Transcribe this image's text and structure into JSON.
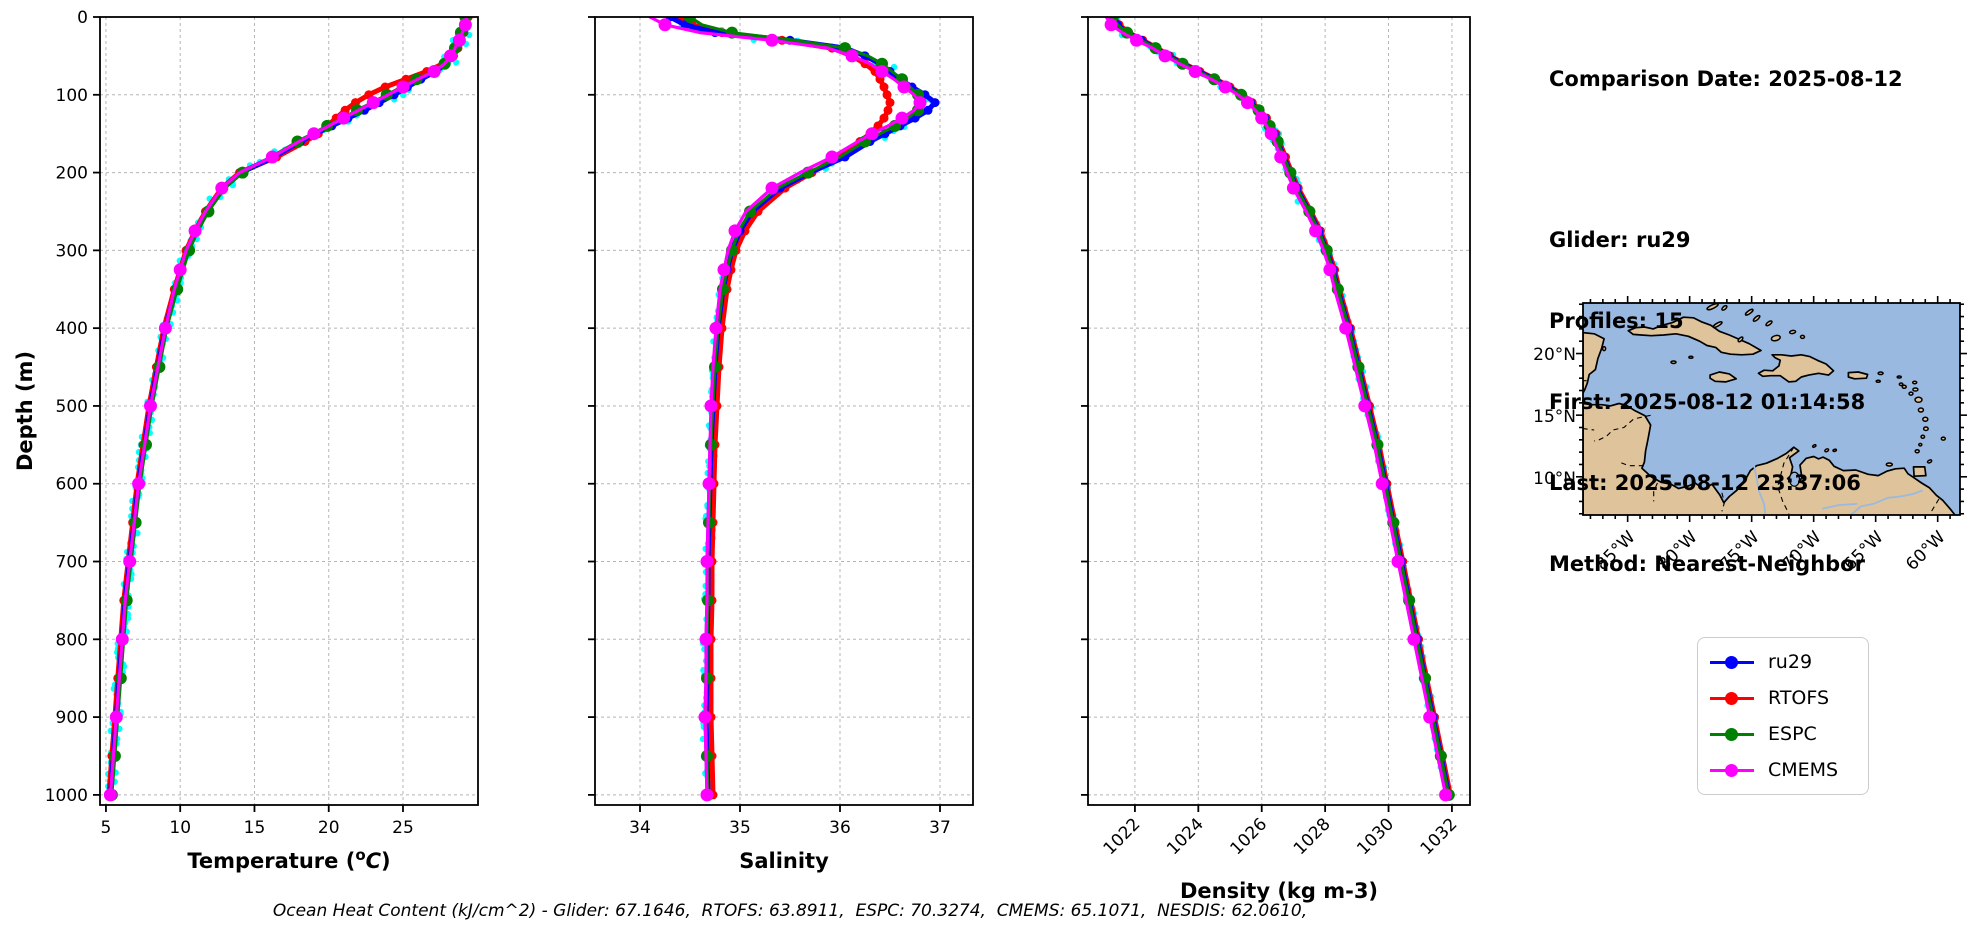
{
  "info_panel": {
    "comparison_date": "Comparison Date: 2025-08-12",
    "glider": "Glider: ru29",
    "profiles": "Profiles: 15",
    "first": "First: 2025-08-12 01:14:58",
    "last": "Last: 2025-08-12 23:37:06",
    "method": "Method: Nearest-Neighbor"
  },
  "legend": {
    "items": [
      {
        "label": "ru29",
        "color": "#0000ff"
      },
      {
        "label": "RTOFS",
        "color": "#ff0000"
      },
      {
        "label": "ESPC",
        "color": "#008000"
      },
      {
        "label": "CMEMS",
        "color": "#ff00ff"
      }
    ]
  },
  "annotation": {
    "text": "Ocean Heat Content (kJ/cm^2) - Glider: 67.1646,  RTOFS: 63.8911,  ESPC: 70.3274,  CMEMS: 65.1071,  NESDIS: 62.0610,"
  },
  "map": {
    "lat_labels": [
      "20°N",
      "15°N",
      "10°N"
    ],
    "lon_labels": [
      "85°W",
      "80°W",
      "75°W",
      "70°W",
      "65°W",
      "60°W"
    ],
    "ocean_color": "#9ab9e0",
    "land_color": "#dfc39a"
  },
  "depth_axis": {
    "label": "Depth (m)",
    "lim": [
      0,
      1013
    ],
    "ticks": [
      0,
      100,
      200,
      300,
      400,
      500,
      600,
      700,
      800,
      900,
      1000
    ],
    "depths": [
      0,
      10,
      20,
      30,
      40,
      50,
      60,
      70,
      80,
      90,
      100,
      110,
      120,
      130,
      140,
      150,
      160,
      180,
      200,
      220,
      250,
      275,
      300,
      325,
      350,
      400,
      450,
      500,
      550,
      600,
      650,
      700,
      750,
      800,
      850,
      900,
      950,
      1000
    ]
  },
  "chart_data": [
    {
      "type": "line",
      "key": "temperature",
      "xlabel": "Temperature (°C)",
      "xlabel_parts": {
        "prefix": "Temperature (",
        "sup": "o",
        "italic": "C",
        "suffix": ")"
      },
      "xlim": [
        4.6,
        30.05
      ],
      "xticks": [
        5,
        10,
        15,
        20,
        25
      ],
      "xtick_rotation": 0,
      "show_depth_labels": true,
      "scatter_name": "glider-scatter",
      "scatter_color": "#00ffff",
      "scatter_spread": 9,
      "scatter_seed": 7,
      "series": [
        {
          "name": "ru29",
          "color": "#0000ff",
          "values": [
            29.3,
            29.2,
            29.0,
            28.8,
            28.6,
            28.3,
            27.9,
            27.2,
            26.2,
            25.3,
            24.4,
            23.4,
            22.4,
            21.3,
            20.2,
            19.1,
            18.1,
            16.3,
            14.1,
            12.9,
            11.8,
            11.1,
            10.5,
            10.1,
            9.7,
            9.0,
            8.5,
            8.0,
            7.6,
            7.2,
            6.9,
            6.6,
            6.3,
            6.1,
            5.9,
            5.7,
            5.5,
            5.3
          ]
        },
        {
          "name": "RTOFS",
          "color": "#ff0000",
          "values": [
            29.4,
            29.3,
            29.1,
            28.9,
            28.7,
            28.4,
            27.7,
            26.6,
            25.2,
            23.8,
            22.7,
            21.8,
            21.1,
            20.5,
            19.9,
            19.3,
            18.4,
            16.5,
            14.0,
            12.8,
            11.7,
            11.0,
            10.4,
            10.0,
            9.6,
            8.9,
            8.4,
            7.9,
            7.5,
            7.1,
            6.8,
            6.5,
            6.2,
            6.0,
            5.8,
            5.6,
            5.4,
            5.2
          ]
        },
        {
          "name": "ESPC",
          "color": "#008000",
          "values": [
            29.2,
            29.1,
            28.9,
            28.7,
            28.5,
            28.2,
            27.8,
            27.0,
            25.9,
            24.9,
            23.9,
            22.9,
            21.9,
            20.9,
            19.9,
            18.9,
            17.9,
            16.1,
            14.2,
            13.0,
            11.9,
            11.2,
            10.6,
            10.2,
            9.8,
            9.1,
            8.6,
            8.1,
            7.7,
            7.3,
            7.0,
            6.7,
            6.4,
            6.2,
            6.0,
            5.8,
            5.6,
            5.4
          ]
        },
        {
          "name": "CMEMS",
          "color": "#ff00ff",
          "values": [
            29.3,
            29.2,
            29.0,
            28.8,
            28.5,
            28.2,
            27.8,
            27.1,
            26.0,
            25.0,
            24.0,
            23.0,
            22.0,
            21.0,
            20.0,
            19.0,
            18.0,
            16.2,
            14.0,
            12.8,
            11.7,
            11.0,
            10.4,
            10.0,
            9.6,
            9.0,
            8.5,
            8.0,
            7.6,
            7.2,
            6.9,
            6.6,
            6.3,
            6.1,
            5.9,
            5.7,
            5.5,
            5.3
          ]
        }
      ]
    },
    {
      "type": "line",
      "key": "salinity",
      "xlabel": "Salinity",
      "xlim": [
        33.55,
        37.33
      ],
      "xticks": [
        34,
        35,
        36,
        37
      ],
      "xtick_rotation": 0,
      "show_depth_labels": false,
      "scatter_name": "glider-scatter",
      "scatter_color": "#00ffff",
      "scatter_spread": 8,
      "scatter_seed": 13,
      "series": [
        {
          "name": "ru29",
          "color": "#0000ff",
          "values": [
            34.3,
            34.45,
            34.75,
            35.5,
            36.05,
            36.25,
            36.4,
            36.5,
            36.6,
            36.72,
            36.85,
            36.95,
            36.88,
            36.75,
            36.6,
            36.45,
            36.3,
            36.05,
            35.7,
            35.4,
            35.12,
            35.0,
            34.92,
            34.87,
            34.83,
            34.78,
            34.75,
            34.73,
            34.71,
            34.7,
            34.69,
            34.68,
            34.68,
            34.67,
            34.67,
            34.66,
            34.67,
            34.68
          ]
        },
        {
          "name": "RTOFS",
          "color": "#ff0000",
          "values": [
            34.4,
            34.52,
            34.82,
            35.42,
            35.92,
            36.12,
            36.25,
            36.35,
            36.4,
            36.44,
            36.47,
            36.5,
            36.48,
            36.44,
            36.38,
            36.3,
            36.2,
            35.98,
            35.72,
            35.45,
            35.18,
            35.05,
            34.96,
            34.91,
            34.87,
            34.82,
            34.79,
            34.77,
            34.75,
            34.74,
            34.73,
            34.72,
            34.72,
            34.71,
            34.71,
            34.71,
            34.72,
            34.73
          ]
        },
        {
          "name": "ESPC",
          "color": "#008000",
          "values": [
            34.5,
            34.62,
            34.92,
            35.55,
            36.05,
            36.28,
            36.42,
            36.52,
            36.62,
            36.7,
            36.78,
            36.82,
            36.78,
            36.68,
            36.55,
            36.4,
            36.25,
            36.0,
            35.68,
            35.38,
            35.1,
            34.99,
            34.92,
            34.87,
            34.83,
            34.78,
            34.75,
            34.73,
            34.71,
            34.7,
            34.69,
            34.68,
            34.68,
            34.67,
            34.67,
            34.66,
            34.67,
            34.68
          ]
        },
        {
          "name": "CMEMS",
          "color": "#ff00ff",
          "values": [
            34.1,
            34.25,
            34.6,
            35.32,
            35.88,
            36.12,
            36.3,
            36.42,
            36.54,
            36.64,
            36.74,
            36.8,
            36.74,
            36.62,
            36.48,
            36.32,
            36.18,
            35.92,
            35.6,
            35.32,
            35.06,
            34.95,
            34.88,
            34.84,
            34.8,
            34.76,
            34.73,
            34.71,
            34.7,
            34.69,
            34.68,
            34.67,
            34.67,
            34.66,
            34.66,
            34.65,
            34.66,
            34.67
          ]
        }
      ]
    },
    {
      "type": "line",
      "key": "density",
      "xlabel": "Density (kg m-3)",
      "xlim": [
        1020.52,
        1032.57
      ],
      "xticks": [
        1022,
        1024,
        1026,
        1028,
        1030,
        1032
      ],
      "xtick_rotation": 45,
      "show_depth_labels": false,
      "scatter_name": "glider-scatter",
      "scatter_color": "#00ffff",
      "scatter_spread": 6,
      "scatter_seed": 21,
      "series": [
        {
          "name": "ru29",
          "color": "#0000ff",
          "values": [
            1021.3,
            1021.45,
            1021.75,
            1022.2,
            1022.65,
            1023.05,
            1023.5,
            1024.0,
            1024.5,
            1024.95,
            1025.35,
            1025.65,
            1025.9,
            1026.1,
            1026.25,
            1026.4,
            1026.5,
            1026.7,
            1026.9,
            1027.1,
            1027.5,
            1027.8,
            1028.05,
            1028.25,
            1028.4,
            1028.75,
            1029.05,
            1029.35,
            1029.65,
            1029.9,
            1030.15,
            1030.4,
            1030.65,
            1030.9,
            1031.15,
            1031.4,
            1031.65,
            1031.9
          ]
        },
        {
          "name": "RTOFS",
          "color": "#ff0000",
          "values": [
            1021.35,
            1021.5,
            1021.8,
            1022.25,
            1022.7,
            1023.1,
            1023.55,
            1024.05,
            1024.55,
            1025.0,
            1025.4,
            1025.7,
            1025.95,
            1026.15,
            1026.3,
            1026.45,
            1026.55,
            1026.75,
            1026.95,
            1027.15,
            1027.55,
            1027.85,
            1028.1,
            1028.3,
            1028.45,
            1028.8,
            1029.1,
            1029.4,
            1029.7,
            1029.95,
            1030.2,
            1030.45,
            1030.7,
            1030.95,
            1031.2,
            1031.45,
            1031.7,
            1031.95
          ]
        },
        {
          "name": "ESPC",
          "color": "#008000",
          "values": [
            1021.3,
            1021.45,
            1021.75,
            1022.2,
            1022.65,
            1023.05,
            1023.5,
            1024.0,
            1024.5,
            1024.95,
            1025.35,
            1025.65,
            1025.9,
            1026.1,
            1026.25,
            1026.4,
            1026.5,
            1026.7,
            1026.9,
            1027.1,
            1027.5,
            1027.8,
            1028.05,
            1028.25,
            1028.4,
            1028.75,
            1029.05,
            1029.35,
            1029.65,
            1029.9,
            1030.15,
            1030.4,
            1030.65,
            1030.9,
            1031.15,
            1031.4,
            1031.65,
            1031.9
          ]
        },
        {
          "name": "CMEMS",
          "color": "#ff00ff",
          "values": [
            1021.1,
            1021.25,
            1021.6,
            1022.05,
            1022.55,
            1022.95,
            1023.4,
            1023.9,
            1024.4,
            1024.85,
            1025.25,
            1025.55,
            1025.8,
            1026.0,
            1026.15,
            1026.3,
            1026.4,
            1026.6,
            1026.8,
            1027.0,
            1027.4,
            1027.7,
            1027.95,
            1028.15,
            1028.3,
            1028.65,
            1028.95,
            1029.25,
            1029.55,
            1029.8,
            1030.05,
            1030.3,
            1030.55,
            1030.8,
            1031.05,
            1031.3,
            1031.55,
            1031.8
          ]
        }
      ]
    }
  ]
}
